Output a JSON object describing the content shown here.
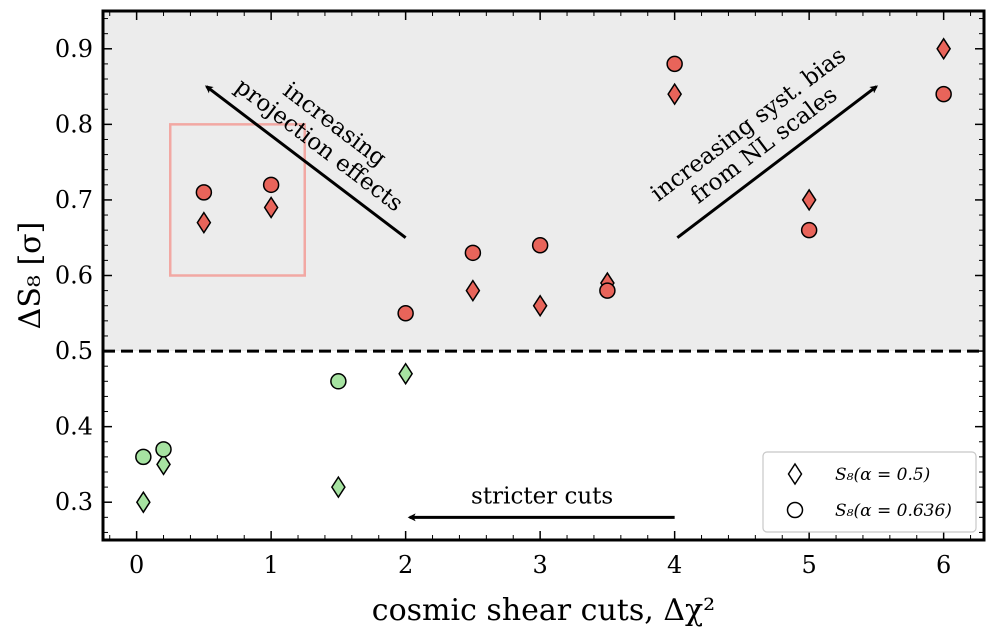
{
  "chart_data": {
    "type": "scatter",
    "xlabel": "cosmic shear cuts, Δχ²",
    "ylabel": "ΔS₈ [σ]",
    "xlim": [
      -0.25,
      6.3
    ],
    "ylim": [
      0.25,
      0.95
    ],
    "x_ticks": [
      0,
      1,
      2,
      3,
      4,
      5,
      6
    ],
    "y_ticks": [
      0.3,
      0.4,
      0.5,
      0.6,
      0.7,
      0.8,
      0.9
    ],
    "x_tick_labels": [
      "0",
      "1",
      "2",
      "3",
      "4",
      "5",
      "6"
    ],
    "y_tick_labels": [
      "0.3",
      "0.4",
      "0.5",
      "0.6",
      "0.7",
      "0.8",
      "0.9"
    ],
    "threshold": 0.5,
    "colors": {
      "above": "#e8645a",
      "below": "#a6e3a1",
      "shade": "#ececec",
      "box": "#f2a8a3"
    },
    "series": [
      {
        "name": "S₈(α = 0.5)",
        "marker": "diamond",
        "points": [
          {
            "x": 0.05,
            "y": 0.3
          },
          {
            "x": 0.2,
            "y": 0.35
          },
          {
            "x": 0.5,
            "y": 0.67
          },
          {
            "x": 1.0,
            "y": 0.69
          },
          {
            "x": 1.5,
            "y": 0.32
          },
          {
            "x": 2.0,
            "y": 0.47
          },
          {
            "x": 2.5,
            "y": 0.58
          },
          {
            "x": 3.0,
            "y": 0.56
          },
          {
            "x": 3.5,
            "y": 0.59
          },
          {
            "x": 4.0,
            "y": 0.84
          },
          {
            "x": 5.0,
            "y": 0.7
          },
          {
            "x": 6.0,
            "y": 0.9
          }
        ]
      },
      {
        "name": "S₈(α = 0.636)",
        "marker": "circle",
        "points": [
          {
            "x": 0.05,
            "y": 0.36
          },
          {
            "x": 0.2,
            "y": 0.37
          },
          {
            "x": 0.5,
            "y": 0.71
          },
          {
            "x": 1.0,
            "y": 0.72
          },
          {
            "x": 1.5,
            "y": 0.46
          },
          {
            "x": 2.0,
            "y": 0.55
          },
          {
            "x": 2.5,
            "y": 0.63
          },
          {
            "x": 3.0,
            "y": 0.64
          },
          {
            "x": 3.5,
            "y": 0.58
          },
          {
            "x": 4.0,
            "y": 0.88
          },
          {
            "x": 5.0,
            "y": 0.66
          },
          {
            "x": 6.0,
            "y": 0.84
          }
        ]
      }
    ],
    "highlight_box": {
      "x0": 0.25,
      "x1": 1.25,
      "y0": 0.6,
      "y1": 0.8
    },
    "annotations": [
      {
        "id": "projection",
        "lines": [
          "increasing",
          "projection effects"
        ],
        "from": [
          2.0,
          0.65
        ],
        "to": [
          0.52,
          0.85
        ]
      },
      {
        "id": "nl-bias",
        "lines": [
          "increasing syst. bias",
          "from NL scales"
        ],
        "from": [
          4.02,
          0.65
        ],
        "to": [
          5.5,
          0.85
        ]
      },
      {
        "id": "stricter",
        "lines": [
          "stricter cuts"
        ],
        "from": [
          4.0,
          0.28
        ],
        "to": [
          2.03,
          0.28
        ]
      }
    ],
    "legend": {
      "position": "lower-right",
      "entries": [
        "S₈(α = 0.5)",
        "S₈(α = 0.636)"
      ]
    }
  }
}
